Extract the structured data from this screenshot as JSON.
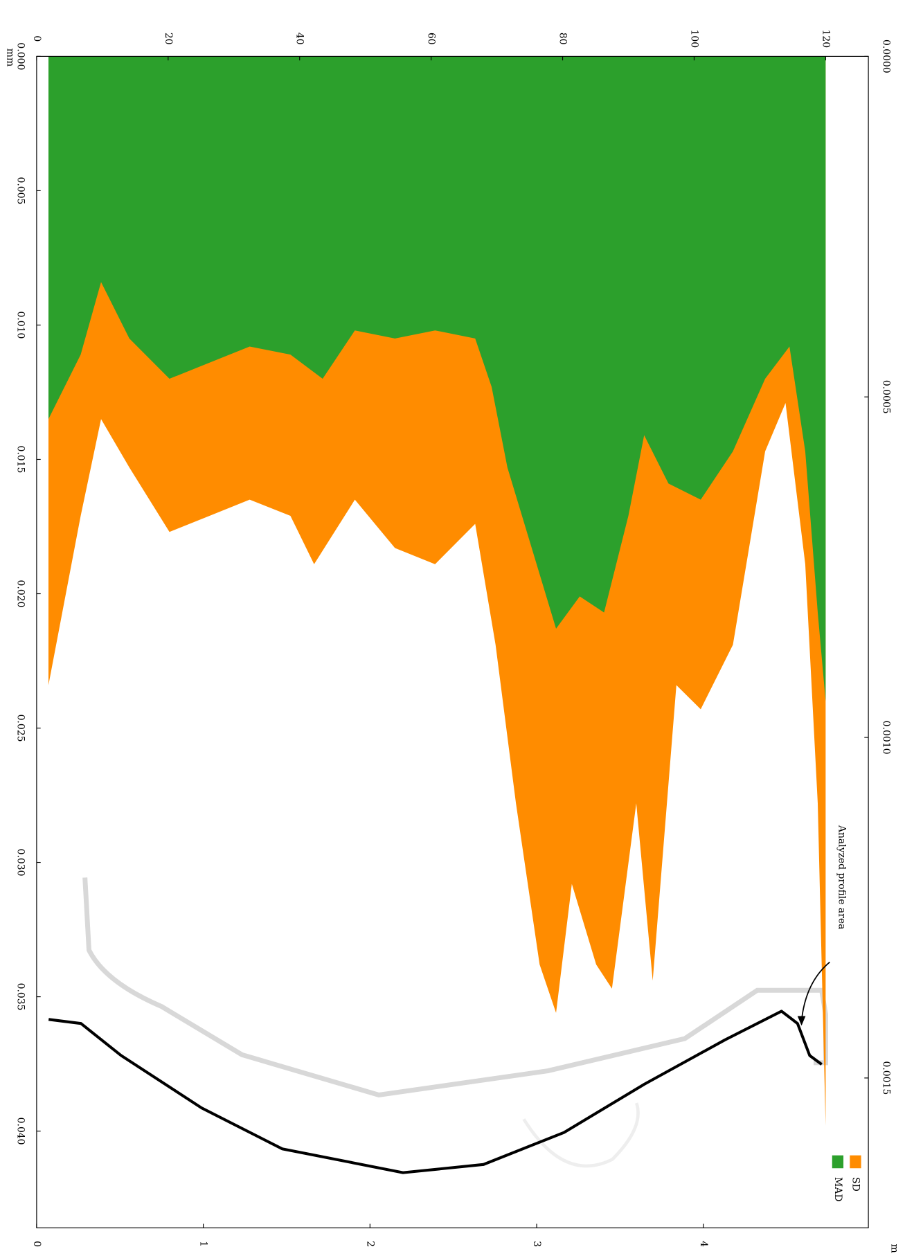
{
  "chart_data": [
    {
      "type": "area",
      "x_label": "mm",
      "annotation": "Analyzed profile area",
      "xlim": [
        0,
        126.5
      ],
      "ylim": [
        0,
        0.0436
      ],
      "xticks": [
        0,
        20,
        40,
        60,
        80,
        100,
        120
      ],
      "yticks": [
        {
          "value": 0,
          "label": "0.000"
        },
        {
          "value": 0.005,
          "label": "0.005"
        },
        {
          "value": 0.01,
          "label": "0.010"
        },
        {
          "value": 0.015,
          "label": "0.015"
        },
        {
          "value": 0.02,
          "label": "0.020"
        },
        {
          "value": 0.025,
          "label": "0.025"
        },
        {
          "value": 0.03,
          "label": "0.030"
        },
        {
          "value": 0.035,
          "label": "0.035"
        },
        {
          "value": 0.04,
          "label": "0.040"
        }
      ],
      "series": [
        {
          "name": "SD",
          "color": "#ff8c00",
          "x": [
            1.8,
            6.7,
            9.8,
            14.1,
            20.2,
            26.3,
            32.4,
            38.6,
            42.2,
            48.4,
            54.5,
            60.6,
            66.7,
            69.8,
            72.9,
            76.5,
            79,
            81.4,
            85.1,
            87.5,
            91.2,
            93.7,
            97.3,
            101,
            105.9,
            110.8,
            113.9,
            116.9,
            118.8,
            120
          ],
          "values": [
            0.0234,
            0.0171,
            0.0135,
            0.0153,
            0.0177,
            0.0171,
            0.0165,
            0.0171,
            0.0189,
            0.0165,
            0.0183,
            0.0189,
            0.0174,
            0.0219,
            0.0278,
            0.0338,
            0.0356,
            0.0308,
            0.0338,
            0.0347,
            0.0278,
            0.0344,
            0.0234,
            0.0243,
            0.0219,
            0.0147,
            0.0129,
            0.0189,
            0.0278,
            0.0398
          ]
        },
        {
          "name": "MAD",
          "color": "#2ca02c",
          "x": [
            1.8,
            6.7,
            9.8,
            14.1,
            20.2,
            26.3,
            32.4,
            38.6,
            43.5,
            48.4,
            54.5,
            60.6,
            66.7,
            69.2,
            71.6,
            75.3,
            79,
            82.6,
            86.3,
            90,
            92.4,
            96.1,
            101,
            105.9,
            110.8,
            114.5,
            116.9,
            118.8,
            120
          ],
          "values": [
            0.0135,
            0.0111,
            0.0084,
            0.0105,
            0.012,
            0.0114,
            0.0108,
            0.0111,
            0.012,
            0.0102,
            0.0105,
            0.0102,
            0.0105,
            0.0123,
            0.0153,
            0.0183,
            0.0213,
            0.0201,
            0.0207,
            0.0171,
            0.0141,
            0.0159,
            0.0165,
            0.0147,
            0.012,
            0.0108,
            0.0147,
            0.0207,
            0.024
          ]
        }
      ]
    },
    {
      "type": "line",
      "x_label": "m",
      "xlim": [
        0,
        4.99
      ],
      "ylim": [
        0,
        0.00172
      ],
      "xticks": [
        0,
        1,
        2,
        3,
        4
      ],
      "yticks": [
        {
          "value": 0,
          "label": "0.0000"
        },
        {
          "value": 0.0005,
          "label": "0.0005"
        },
        {
          "value": 0.001,
          "label": "0.0010"
        },
        {
          "value": 0.0015,
          "label": "0.0015"
        }
      ],
      "color": "#000000",
      "x": [
        0.072,
        0.266,
        0.507,
        0.99,
        1.473,
        2.198,
        2.681,
        3.164,
        3.647,
        4.13,
        4.469,
        4.565,
        4.638,
        4.71
      ],
      "values": [
        0.001414,
        0.00142,
        0.001467,
        0.001544,
        0.001604,
        0.001639,
        0.001627,
        0.00158,
        0.001509,
        0.001444,
        0.001402,
        0.00142,
        0.001467,
        0.00148
      ]
    }
  ]
}
